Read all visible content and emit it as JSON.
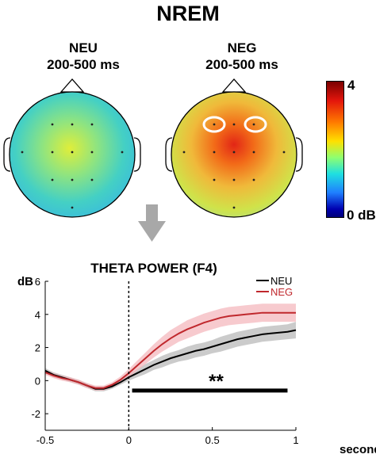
{
  "figure": {
    "title": "NREM",
    "panels": [
      {
        "condition": "NEU",
        "window": "200-500 ms"
      },
      {
        "condition": "NEG",
        "window": "200-500 ms"
      }
    ],
    "colorbar": {
      "max_label": "4",
      "min_label": "0 dB",
      "min": 0,
      "max": 4
    },
    "head_colors": {
      "neu_base": "#40cfc6",
      "neg_base": "#f0b93a"
    }
  },
  "chart_data": {
    "type": "line",
    "title": "THETA POWER (F4)",
    "xlabel": "seconds",
    "ylabel": "dB",
    "xlim": [
      -0.5,
      1
    ],
    "ylim": [
      -3,
      6
    ],
    "xticks": [
      -0.5,
      0,
      0.5,
      1
    ],
    "xtick_labels": [
      "-0.5",
      "0",
      "0.5",
      "1"
    ],
    "yticks": [
      -2,
      0,
      2,
      4,
      6
    ],
    "ytick_labels": [
      "-2",
      "0",
      "2",
      "4",
      "6"
    ],
    "grid": false,
    "legend": "top-right",
    "stimulus_onset": 0,
    "significance": {
      "label": "**",
      "x_start": 0.02,
      "x_end": 0.95,
      "y": -0.6
    },
    "x": [
      -0.5,
      -0.45,
      -0.4,
      -0.35,
      -0.3,
      -0.25,
      -0.2,
      -0.15,
      -0.1,
      -0.05,
      0,
      0.05,
      0.1,
      0.15,
      0.2,
      0.25,
      0.3,
      0.35,
      0.4,
      0.45,
      0.5,
      0.55,
      0.6,
      0.65,
      0.7,
      0.75,
      0.8,
      0.85,
      0.9,
      0.95,
      1
    ],
    "series": [
      {
        "name": "NEU",
        "color": "#000000",
        "band": "#b9b9b9",
        "values": [
          0.6,
          0.35,
          0.2,
          0.05,
          -0.1,
          -0.3,
          -0.5,
          -0.5,
          -0.35,
          -0.1,
          0.2,
          0.45,
          0.7,
          0.95,
          1.15,
          1.35,
          1.5,
          1.65,
          1.8,
          1.9,
          2.05,
          2.2,
          2.35,
          2.5,
          2.6,
          2.7,
          2.8,
          2.85,
          2.9,
          2.95,
          3.05
        ],
        "sem": [
          0.15,
          0.15,
          0.15,
          0.15,
          0.15,
          0.15,
          0.15,
          0.15,
          0.15,
          0.15,
          0.2,
          0.25,
          0.3,
          0.3,
          0.35,
          0.35,
          0.35,
          0.4,
          0.4,
          0.4,
          0.4,
          0.45,
          0.45,
          0.45,
          0.45,
          0.45,
          0.45,
          0.45,
          0.45,
          0.45,
          0.5
        ]
      },
      {
        "name": "NEG",
        "color": "#c0282d",
        "band": "#f4b8bd",
        "values": [
          0.5,
          0.3,
          0.15,
          0.05,
          -0.1,
          -0.3,
          -0.45,
          -0.45,
          -0.25,
          0.05,
          0.45,
          0.9,
          1.35,
          1.8,
          2.2,
          2.55,
          2.85,
          3.1,
          3.3,
          3.5,
          3.65,
          3.8,
          3.9,
          3.95,
          4.0,
          4.05,
          4.1,
          4.1,
          4.1,
          4.1,
          4.1
        ],
        "sem": [
          0.15,
          0.15,
          0.15,
          0.15,
          0.15,
          0.15,
          0.15,
          0.15,
          0.15,
          0.2,
          0.25,
          0.3,
          0.35,
          0.4,
          0.45,
          0.5,
          0.5,
          0.55,
          0.55,
          0.55,
          0.55,
          0.55,
          0.55,
          0.55,
          0.55,
          0.55,
          0.55,
          0.55,
          0.55,
          0.55,
          0.55
        ]
      }
    ]
  }
}
